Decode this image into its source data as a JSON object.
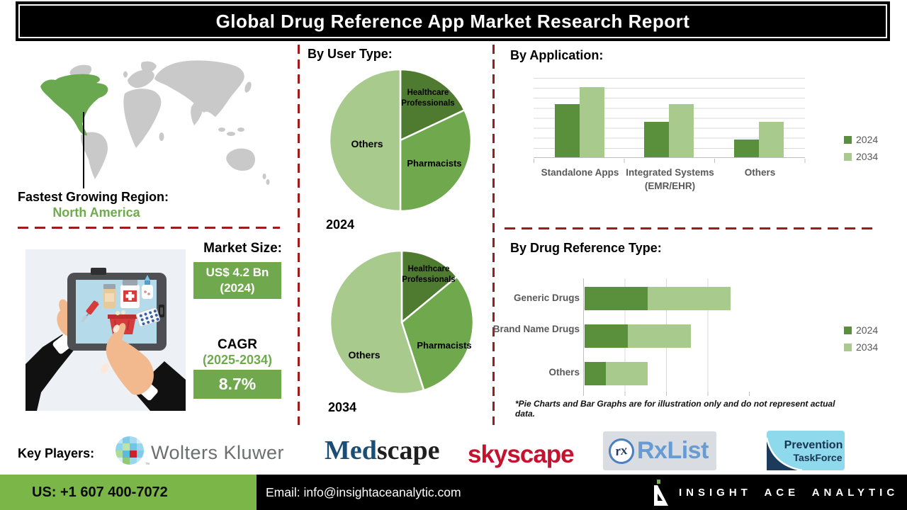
{
  "header": {
    "title": "Global Drug Reference App Market Research Report"
  },
  "left": {
    "region_label": "Fastest Growing Region:",
    "region_value": "North America",
    "market_label": "Market Size:",
    "market_value": "US$ 4.2 Bn",
    "market_year": "(2024)",
    "cagr_label": "CAGR",
    "cagr_period": "(2025-2034)",
    "cagr_value": "8.7%"
  },
  "sections": {
    "user_type_title": "By User Type:",
    "application_title": "By Application:",
    "drug_ref_title": "By Drug Reference Type:",
    "disclaimer": "*Pie Charts and Bar Graphs are for illustration only and do not represent actual data."
  },
  "colors": {
    "dark_green": "#4f7b30",
    "mid_green": "#70a84e",
    "light_green": "#a8ca8d",
    "bar_dark_green": "#5a8f3c",
    "map_green": "#6aa84f",
    "map_gray": "#c9c9c9",
    "dash_red": "#9d1d1d",
    "footer_green": "#7ab648",
    "accent_box_green": "#70a84e"
  },
  "chart_data": [
    {
      "id": "user-type-2024",
      "type": "pie",
      "title": "2024",
      "legend_position": "none",
      "slices": [
        {
          "label": "Healthcare Professionals",
          "value": 18,
          "color": "#4f7b30"
        },
        {
          "label": "Pharmacists",
          "value": 32,
          "color": "#70a84e"
        },
        {
          "label": "Others",
          "value": 50,
          "color": "#a8ca8d"
        }
      ]
    },
    {
      "id": "user-type-2034",
      "type": "pie",
      "title": "2034",
      "legend_position": "none",
      "slices": [
        {
          "label": "Healthcare Professionals",
          "value": 14,
          "color": "#4f7b30"
        },
        {
          "label": "Pharmacists",
          "value": 31,
          "color": "#70a84e"
        },
        {
          "label": "Others",
          "value": 55,
          "color": "#a8ca8d"
        }
      ]
    },
    {
      "id": "by-application",
      "type": "bar",
      "orientation": "vertical",
      "title": "By Application:",
      "categories": [
        "Standalone Apps",
        "Integrated Systems (EMR/EHR)",
        "Others"
      ],
      "series": [
        {
          "name": "2024",
          "color": "#5a8f3c",
          "values": [
            66,
            44,
            22
          ]
        },
        {
          "name": "2034",
          "color": "#a8ca8d",
          "values": [
            88,
            66,
            44
          ]
        }
      ],
      "ylim": [
        0,
        100
      ],
      "grid": true,
      "legend_position": "right",
      "note": "illustrative values, y-axis unlabeled"
    },
    {
      "id": "by-drug-reference-type",
      "type": "bar",
      "orientation": "horizontal",
      "stacked": true,
      "title": "By Drug Reference Type:",
      "categories": [
        "Generic Drugs",
        "Brand Name Drugs",
        "Others"
      ],
      "series": [
        {
          "name": "2024",
          "color": "#5a8f3c",
          "values": [
            38,
            26,
            13
          ]
        },
        {
          "name": "2034",
          "color": "#a8ca8d",
          "values": [
            50,
            38,
            25
          ]
        }
      ],
      "xlim": [
        0,
        100
      ],
      "grid": true,
      "legend_position": "right",
      "note": "illustrative values, x-axis unlabeled"
    }
  ],
  "key_players": {
    "label": "Key Players:",
    "wolters_kluwer": "Wolters Kluwer",
    "wolters_tm": "™",
    "medscape_prefix": "Med",
    "medscape_suffix": "scape",
    "skyscape": "skyscape",
    "rxlist_icon": "rx",
    "rxlist": "RxList",
    "prevention_line1": "Prevention",
    "prevention_line2": "TaskForce"
  },
  "footer": {
    "phone": "US: +1 607 400-7072",
    "email": "Email: info@insightaceanalytic.com",
    "brand": "INSIGHT ACE ANALYTIC"
  }
}
